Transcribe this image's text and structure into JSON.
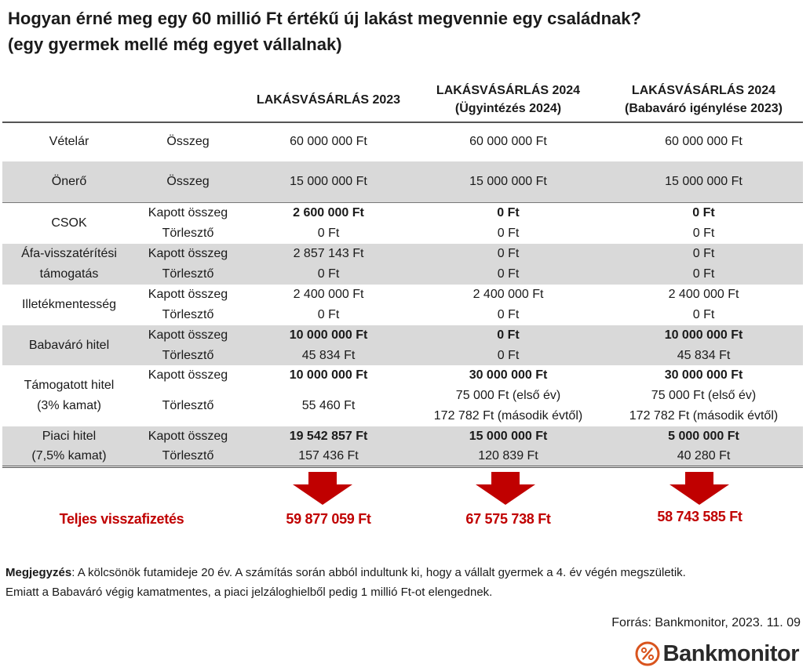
{
  "title": {
    "line1": "Hogyan érné meg egy 60 millió Ft értékű új lakást megvennie egy családnak?",
    "line2": "(egy gyermek mellé még egyet vállalnak)"
  },
  "headers": {
    "col1": "LAKÁSVÁSÁRLÁS 2023",
    "col2_line1": "LAKÁSVÁSÁRLÁS 2024",
    "col2_line2": "(Ügyintézés 2024)",
    "col3_line1": "LAKÁSVÁSÁRLÁS 2024",
    "col3_line2": "(Babaváró igénylése 2023)"
  },
  "rows": {
    "vetelar": {
      "label": "Vételár",
      "sub": "Összeg",
      "v1": "60 000 000 Ft",
      "v2": "60 000 000 Ft",
      "v3": "60 000 000 Ft"
    },
    "onero": {
      "label": "Önerő",
      "sub": "Összeg",
      "v1": "15 000 000 Ft",
      "v2": "15 000 000 Ft",
      "v3": "15 000 000 Ft"
    },
    "csok": {
      "label": "CSOK",
      "sub1": "Kapott összeg",
      "sub2": "Törlesztő",
      "k1": "2 600 000 Ft",
      "k2": "0 Ft",
      "k3": "0 Ft",
      "t1": "0 Ft",
      "t2": "0 Ft",
      "t3": "0 Ft"
    },
    "afa": {
      "label1": "Áfa-visszatérítési",
      "label2": "támogatás",
      "sub1": "Kapott összeg",
      "sub2": "Törlesztő",
      "k1": "2 857 143 Ft",
      "k2": "0 Ft",
      "k3": "0 Ft",
      "t1": "0 Ft",
      "t2": "0 Ft",
      "t3": "0 Ft"
    },
    "illetek": {
      "label": "Illetékmentesség",
      "sub1": "Kapott összeg",
      "sub2": "Törlesztő",
      "k1": "2 400 000 Ft",
      "k2": "2 400 000 Ft",
      "k3": "2 400 000 Ft",
      "t1": "0 Ft",
      "t2": "0 Ft",
      "t3": "0 Ft"
    },
    "babavaro": {
      "label": "Babaváró hitel",
      "sub1": "Kapott összeg",
      "sub2": "Törlesztő",
      "k1": "10 000 000 Ft",
      "k2": "0 Ft",
      "k3": "10 000 000 Ft",
      "t1": "45 834 Ft",
      "t2": "0 Ft",
      "t3": "45 834 Ft"
    },
    "tamogatott": {
      "label1": "Támogatott hitel",
      "label2": "(3% kamat)",
      "sub1": "Kapott összeg",
      "sub2": "Törlesztő",
      "k1": "10 000 000 Ft",
      "k2": "30 000 000 Ft",
      "k3": "30 000 000 Ft",
      "t1": "55 460 Ft",
      "t2_line1": "75 000 Ft (első év)",
      "t2_line2": "172 782 Ft (második évtől)",
      "t3_line1": "75 000 Ft (első év)",
      "t3_line2": "172 782 Ft (második évtől)"
    },
    "piaci": {
      "label1": "Piaci hitel",
      "label2": "(7,5% kamat)",
      "sub1": "Kapott összeg",
      "sub2": "Törlesztő",
      "k1": "19 542 857 Ft",
      "k2": "15 000 000 Ft",
      "k3": "5 000 000 Ft",
      "t1": "157 436 Ft",
      "t2": "120 839 Ft",
      "t3": "40 280 Ft"
    }
  },
  "totals": {
    "label": "Teljes visszafizetés",
    "v1": "59 877 059 Ft",
    "v2": "67 575 738 Ft",
    "v3": "58 743 585 Ft"
  },
  "note": {
    "bold": "Megjegyzés",
    "text1": ": A kölcsönök futamideje 20 év. A számítás során abból indultunk ki, hogy a vállalt gyermek a 4. év végén megszületik.",
    "text2": "Emiatt a Babaváró végig kamatmentes, a piaci jelzáloghielből pedig 1 millió Ft-ot elengednek."
  },
  "source": "Forrás: Bankmonitor, 2023. 11. 09",
  "logo": {
    "text": "Bankmonitor",
    "icon": "percent-icon"
  },
  "colors": {
    "accent": "#c00000",
    "shade": "#d9d9d9"
  }
}
